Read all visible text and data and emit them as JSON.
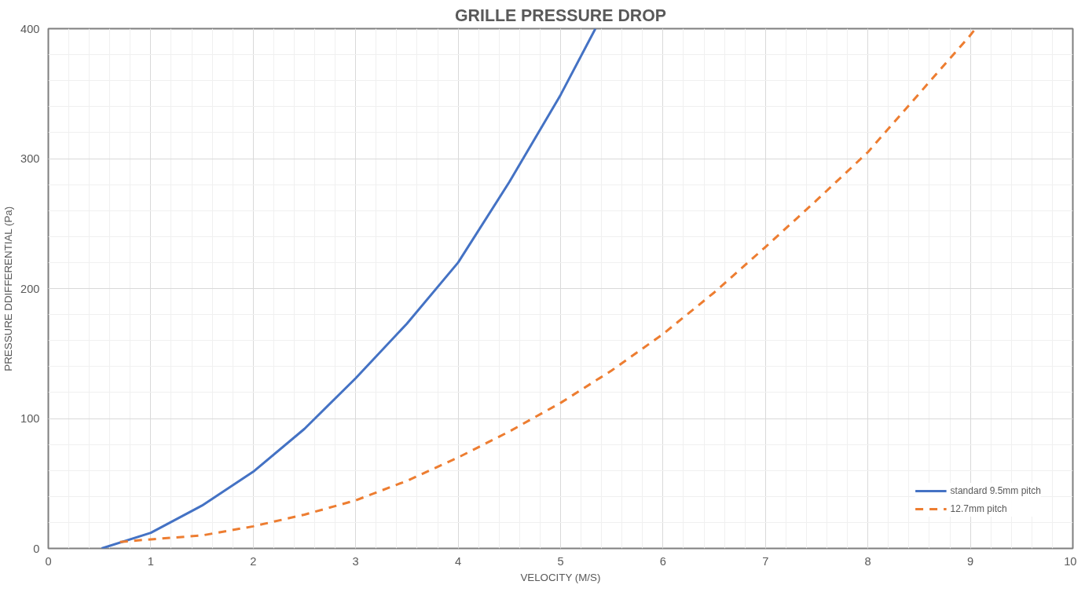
{
  "chart_data": {
    "type": "line",
    "title": "GRILLE PRESSURE DROP",
    "xlabel": "VELOCITY (M/S)",
    "ylabel": "PRESSURE DDIFFERENTIAL (Pa)",
    "xlim": [
      0,
      10
    ],
    "ylim": [
      0,
      400
    ],
    "xticks": [
      0,
      1,
      2,
      3,
      4,
      5,
      6,
      7,
      8,
      9,
      10
    ],
    "yticks": [
      0,
      100,
      200,
      300,
      400
    ],
    "grid": true,
    "legend": "bottom right",
    "series": [
      {
        "name": "standard 9.5mm pitch",
        "color": "#4472c4",
        "line_style": "solid",
        "x": [
          0.52,
          1,
          1.5,
          2,
          2.5,
          3,
          3.5,
          4,
          4.5,
          5,
          5.34
        ],
        "values": [
          0,
          12,
          33,
          59,
          92,
          131,
          173,
          220,
          282,
          349,
          400
        ]
      },
      {
        "name": "12.7mm pitch",
        "color": "#ed7d31",
        "line_style": "dashed",
        "x": [
          0.7,
          1,
          1.5,
          2,
          2.5,
          3,
          3.5,
          4,
          4.5,
          5,
          5.5,
          6,
          6.5,
          7,
          7.5,
          8,
          8.5,
          9,
          9.05
        ],
        "values": [
          5,
          7,
          10,
          17,
          26,
          37,
          52,
          70,
          90,
          112,
          137,
          165,
          197,
          232,
          268,
          305,
          350,
          395,
          400
        ]
      }
    ]
  }
}
